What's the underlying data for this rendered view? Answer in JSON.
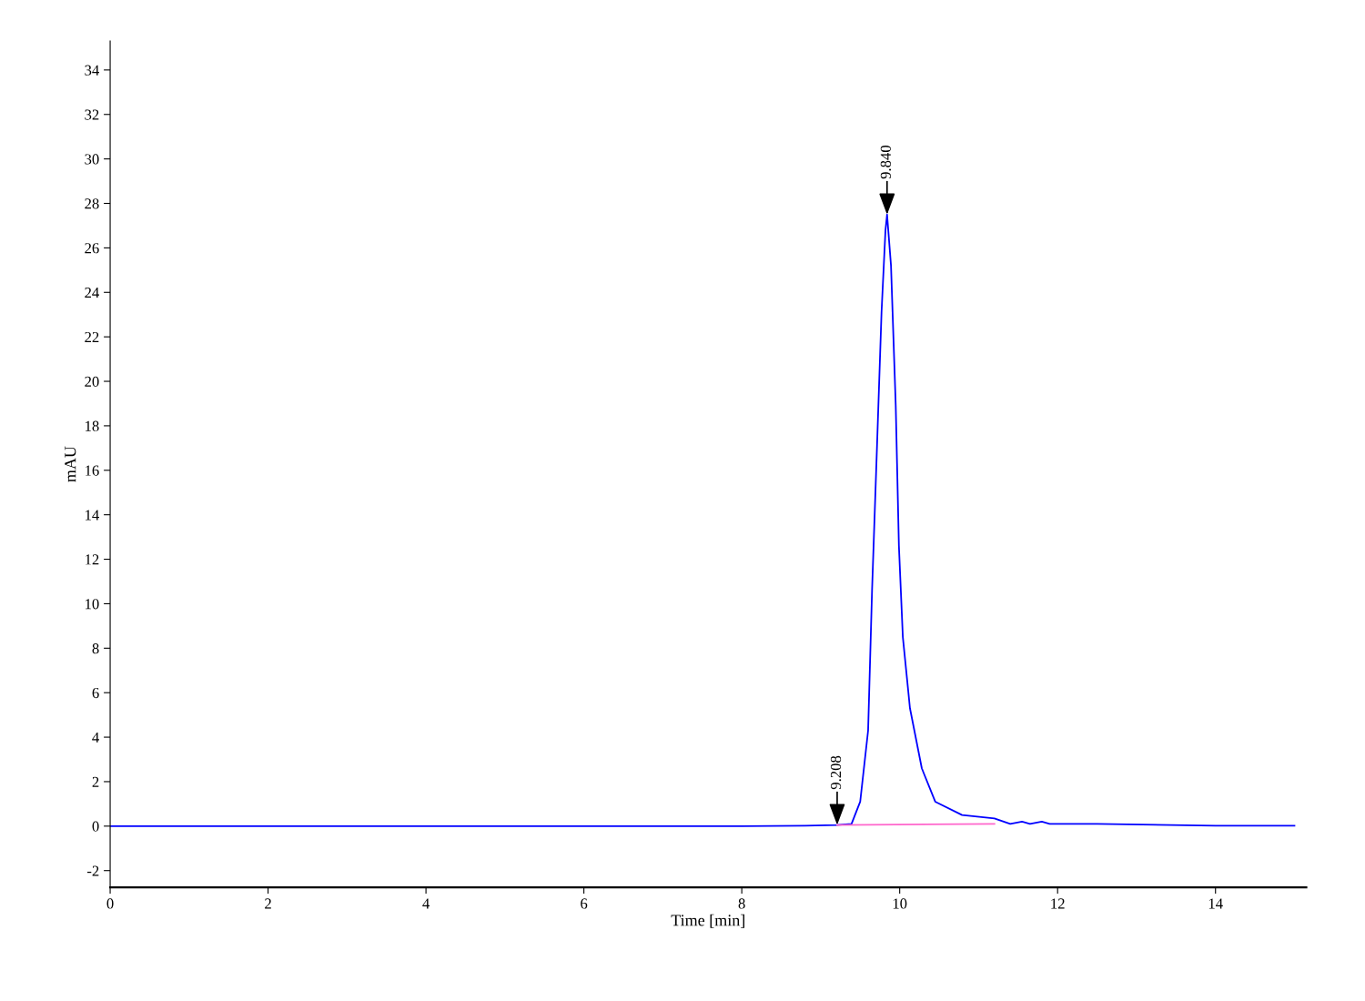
{
  "chart_data": {
    "type": "line",
    "xlabel": "Time [min]",
    "ylabel": "mAU",
    "series": [
      {
        "color": "#0000ff",
        "x": [
          0,
          2,
          4,
          6,
          8,
          8.8,
          9.2,
          9.39,
          9.5,
          9.6,
          9.65,
          9.71,
          9.77,
          9.82,
          9.84,
          9.89,
          9.95,
          9.99,
          10.04,
          10.13,
          10.28,
          10.45,
          10.79,
          11.2,
          11.4,
          11.55,
          11.65,
          11.8,
          11.9,
          12.5,
          14,
          15
        ],
        "values": [
          0,
          0,
          0,
          0,
          0,
          0.02,
          0.05,
          0.1,
          1.1,
          4.3,
          10.6,
          16.8,
          23.1,
          26.8,
          27.5,
          25.2,
          18.9,
          12.6,
          8.5,
          5.3,
          2.6,
          1.1,
          0.5,
          0.35,
          0.1,
          0.2,
          0.1,
          0.2,
          0.1,
          0.1,
          0.02,
          0.02
        ]
      },
      {
        "color": "#ff66cc",
        "x": [
          9.208,
          11.2
        ],
        "values": [
          0.05,
          0.1
        ]
      }
    ],
    "annotations": [
      {
        "text": "9.208",
        "x": 9.208,
        "y": 0.05
      },
      {
        "text": "9.840",
        "x": 9.84,
        "y": 27.5
      }
    ],
    "xlim": [
      0,
      15.15
    ],
    "xticks": [
      0,
      2,
      4,
      6,
      8,
      10,
      12,
      14
    ],
    "ylim": [
      -2.75,
      35.3
    ],
    "yticks": [
      -2,
      0,
      2,
      4,
      6,
      8,
      10,
      12,
      14,
      16,
      18,
      20,
      22,
      24,
      26,
      28,
      30,
      32,
      34
    ],
    "grid": false,
    "legend": false,
    "marker": "none",
    "line_style": "solid"
  }
}
